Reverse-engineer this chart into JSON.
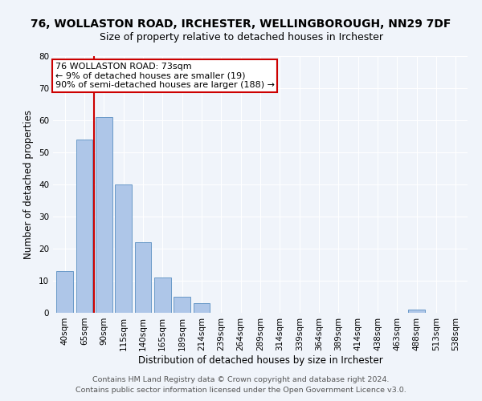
{
  "title": "76, WOLLASTON ROAD, IRCHESTER, WELLINGBOROUGH, NN29 7DF",
  "subtitle": "Size of property relative to detached houses in Irchester",
  "xlabel": "Distribution of detached houses by size in Irchester",
  "ylabel": "Number of detached properties",
  "categories": [
    "40sqm",
    "65sqm",
    "90sqm",
    "115sqm",
    "140sqm",
    "165sqm",
    "189sqm",
    "214sqm",
    "239sqm",
    "264sqm",
    "289sqm",
    "314sqm",
    "339sqm",
    "364sqm",
    "389sqm",
    "414sqm",
    "438sqm",
    "463sqm",
    "488sqm",
    "513sqm",
    "538sqm"
  ],
  "values": [
    13,
    54,
    61,
    40,
    22,
    11,
    5,
    3,
    0,
    0,
    0,
    0,
    0,
    0,
    0,
    0,
    0,
    0,
    1,
    0,
    0
  ],
  "bar_color": "#aec6e8",
  "bar_edgecolor": "#5a8fc2",
  "vline_x": 1.5,
  "vline_color": "#cc0000",
  "ylim": [
    0,
    80
  ],
  "yticks": [
    0,
    10,
    20,
    30,
    40,
    50,
    60,
    70,
    80
  ],
  "annotation_text": "76 WOLLASTON ROAD: 73sqm\n← 9% of detached houses are smaller (19)\n90% of semi-detached houses are larger (188) →",
  "annotation_box_color": "#ffffff",
  "annotation_box_edgecolor": "#cc0000",
  "footer_line1": "Contains HM Land Registry data © Crown copyright and database right 2024.",
  "footer_line2": "Contains public sector information licensed under the Open Government Licence v3.0.",
  "background_color": "#f0f4fa",
  "plot_background": "#f0f4fa",
  "grid_color": "#ffffff",
  "title_fontsize": 10,
  "subtitle_fontsize": 9,
  "axis_label_fontsize": 8.5,
  "tick_fontsize": 7.5,
  "footer_fontsize": 6.8,
  "annotation_fontsize": 8
}
